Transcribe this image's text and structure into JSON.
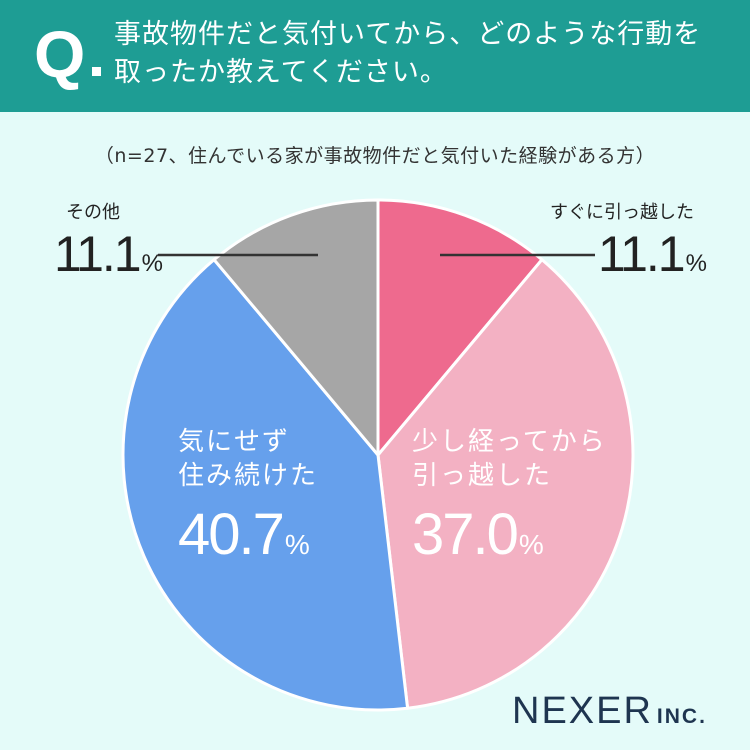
{
  "header": {
    "q_mark": "Q",
    "question_line1": "事故物件だと気付いてから、どのような行動を",
    "question_line2": "取ったか教えてください。",
    "color": "#1e9d94"
  },
  "sample_note": "（n=27、住んでいる家が事故物件だと気付いた経験がある方）",
  "chart_data": {
    "type": "pie",
    "start_angle_deg": 0,
    "direction": "clockwise",
    "slices": [
      {
        "label": "すぐに引っ越した",
        "value": 11.1,
        "display": "11.1",
        "unit": "%",
        "color": "#ee6a8e"
      },
      {
        "label_line1": "少し経ってから",
        "label_line2": "引っ越した",
        "value": 37.0,
        "display": "37.0",
        "unit": "%",
        "color": "#f3b1c3"
      },
      {
        "label_line1": "気にせず",
        "label_line2": "住み続けた",
        "value": 40.7,
        "display": "40.7",
        "unit": "%",
        "color": "#66a0ec"
      },
      {
        "label": "その他",
        "value": 11.1,
        "display": "11.1",
        "unit": "%",
        "color": "#a6a6a6"
      }
    ]
  },
  "logo": {
    "main": "NEXER",
    "suffix": "INC."
  }
}
